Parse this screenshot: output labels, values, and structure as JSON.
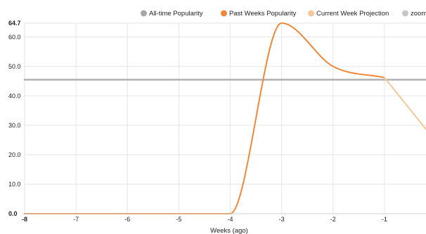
{
  "chart_data": {
    "type": "line",
    "xlabel": "Weeks (ago)",
    "xlim": [
      -8,
      0
    ],
    "ylim": [
      0,
      64.7
    ],
    "x_ticks": [
      "-8",
      "-7",
      "-6",
      "-5",
      "-4",
      "-3",
      "-2",
      "-1"
    ],
    "y_ticks": [
      "0.0",
      "10.0",
      "20.0",
      "30.0",
      "40.0",
      "50.0",
      "60.0",
      "64.7"
    ],
    "grid": true,
    "legend_position": "top-right",
    "legend": [
      {
        "label": "All-time Popularity",
        "color": "#a6a6a6"
      },
      {
        "label": "Past Weeks Popularity",
        "color": "#f0883a"
      },
      {
        "label": "Current Week Projection",
        "color": "#f5c89a"
      },
      {
        "label": "zoom",
        "color": "#c6c6c6"
      }
    ],
    "series": [
      {
        "name": "All-time Popularity",
        "color": "#b0b0b0",
        "x": [
          -8,
          0
        ],
        "y": [
          45.5,
          45.5
        ]
      },
      {
        "name": "Past Weeks Popularity",
        "color": "#f0883a",
        "x": [
          -8,
          -7,
          -6,
          -5,
          -4,
          -3,
          -2,
          -1
        ],
        "y": [
          0,
          0,
          0,
          0,
          0,
          64.7,
          50,
          46.2
        ]
      },
      {
        "name": "Current Week Projection",
        "color": "#f5c89a",
        "x": [
          -1,
          0
        ],
        "y": [
          46.2,
          24.5
        ]
      }
    ]
  }
}
